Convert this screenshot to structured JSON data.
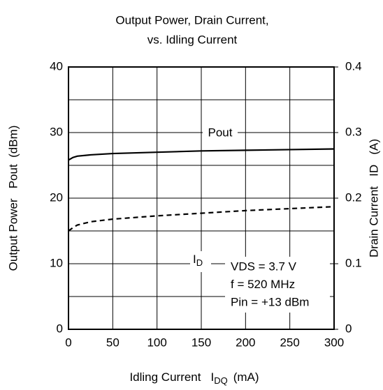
{
  "chart_data": {
    "type": "line",
    "title": [
      "Output Power, Drain Current,",
      "vs. Idling Current"
    ],
    "x_label": {
      "text": "Idling Current",
      "symbol": "I",
      "subscript": "DQ",
      "unit": "(mA)"
    },
    "y_label": "Output Power   Pout  (dBm)",
    "y2_label": "Drain Current   ID   (A)",
    "x": [
      0,
      5,
      10,
      25,
      50,
      100,
      150,
      200,
      250,
      300
    ],
    "series": [
      {
        "name": "Pout",
        "color": "#000000",
        "dash": "solid",
        "values": [
          25.8,
          26.2,
          26.4,
          26.6,
          26.8,
          27.0,
          27.2,
          27.3,
          27.4,
          27.5
        ]
      },
      {
        "name": "I",
        "subscript": "D",
        "color": "#000000",
        "dash": "dashed",
        "axis": "y2",
        "values": [
          0.15,
          0.155,
          0.159,
          0.164,
          0.168,
          0.173,
          0.177,
          0.181,
          0.184,
          0.187
        ]
      }
    ],
    "annotations": [
      "VDS = 3.7 V",
      "f = 520 MHz",
      "Pin = +13 dBm"
    ],
    "xlim": [
      0,
      300
    ],
    "xticks": [
      0,
      50,
      100,
      150,
      200,
      250,
      300
    ],
    "ylim": [
      0,
      40
    ],
    "yticks": [
      0,
      10,
      20,
      30,
      40
    ],
    "y2lim": [
      0,
      0.4
    ],
    "y2ticks": [
      0,
      0.1,
      0.2,
      0.3,
      0.4
    ],
    "grid": true
  }
}
